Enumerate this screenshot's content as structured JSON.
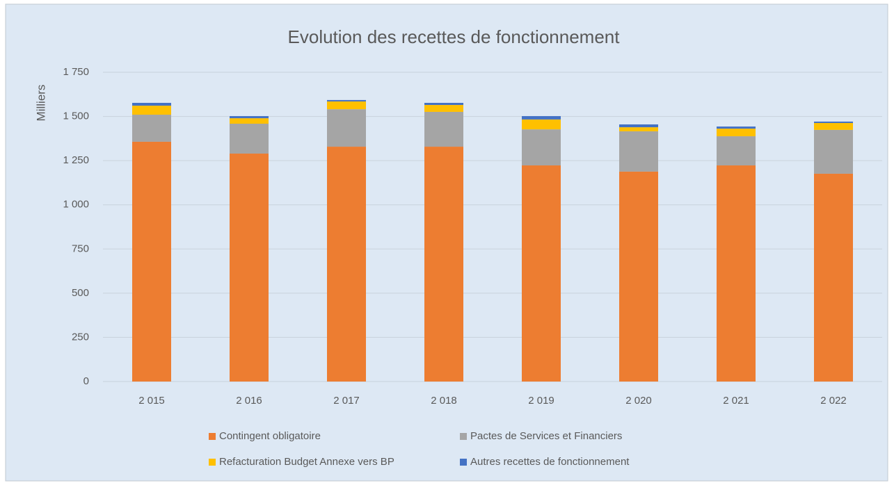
{
  "chart_data": {
    "type": "stacked_bar",
    "title": "Evolution des recettes de fonctionnement",
    "y_label": "Milliers",
    "categories": [
      "2 015",
      "2 016",
      "2 017",
      "2 018",
      "2 019",
      "2 020",
      "2 021",
      "2 022"
    ],
    "series": [
      {
        "name": "Contingent obligatoire",
        "color": "#ed7d31",
        "values": [
          1357,
          1290,
          1329,
          1329,
          1223,
          1188,
          1223,
          1176
        ]
      },
      {
        "name": "Pactes de Services et Financiers",
        "color": "#a5a5a5",
        "values": [
          153,
          169,
          212,
          197,
          204,
          228,
          165,
          248
        ]
      },
      {
        "name": "Refacturation Budget Annexe vers BP",
        "color": "#ffc000",
        "values": [
          51,
          31,
          44,
          39,
          56,
          23,
          43,
          39
        ]
      },
      {
        "name": "Autres recettes de fonctionnement",
        "color": "#4472c4",
        "values": [
          16,
          12,
          8,
          12,
          19,
          16,
          12,
          8
        ]
      }
    ],
    "ylim": [
      0,
      1750
    ],
    "yticks": [
      0,
      250,
      500,
      750,
      {
        "value": 1000,
        "label": "1 000"
      },
      {
        "value": 1250,
        "label": "1 250"
      },
      {
        "value": 1500,
        "label": "1 500"
      },
      {
        "value": 1750,
        "label": "1 750"
      }
    ],
    "grid": true,
    "legend": "bottom"
  }
}
